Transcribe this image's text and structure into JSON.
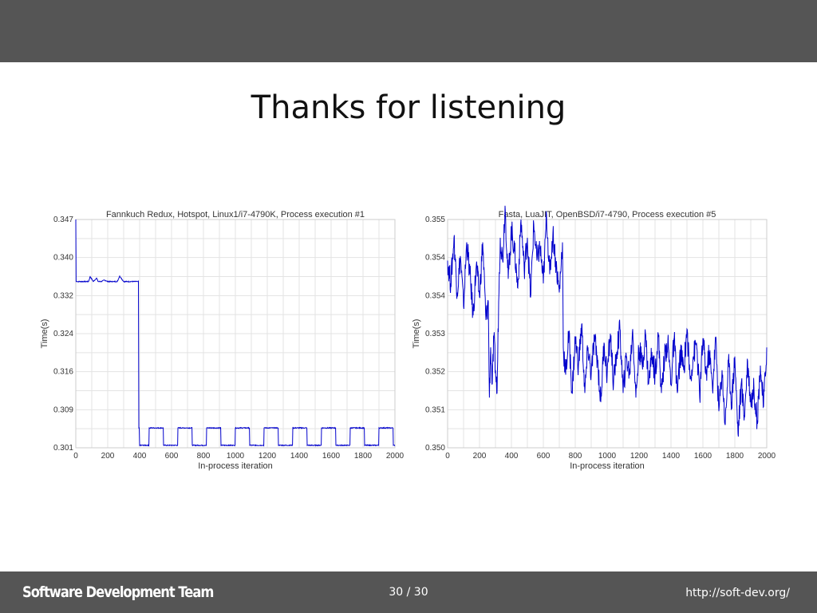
{
  "slide": {
    "title": "Thanks for listening"
  },
  "footer": {
    "team": "Software Development Team",
    "page": "30 / 30",
    "url": "http://soft-dev.org/"
  },
  "colors": {
    "bar": "#555555",
    "series": "#0000cc"
  },
  "chart_data": [
    {
      "type": "line",
      "title": "Fannkuch Redux, Hotspot, Linux1/i7-4790K, Process execution #1",
      "xlabel": "In-process iteration",
      "ylabel": "Time(s)",
      "xlim": [
        0,
        2000
      ],
      "ylim": [
        0.301,
        0.347
      ],
      "xticks": [
        "0",
        "200",
        "400",
        "600",
        "800",
        "1000",
        "1200",
        "1400",
        "1600",
        "1800",
        "2000"
      ],
      "yticks": [
        "0.301",
        "0.309",
        "0.316",
        "0.324",
        "0.332",
        "0.340",
        "0.347"
      ],
      "grid": true,
      "series": [
        {
          "x": [
            0,
            1,
            2,
            5,
            80,
            90,
            110,
            130,
            140,
            160,
            180,
            200,
            260,
            275,
            300,
            385,
            390,
            395,
            400,
            450,
            460,
            540,
            550,
            630,
            640,
            720,
            730,
            810,
            820,
            900,
            910,
            990,
            1000,
            1080,
            1090,
            1170,
            1180,
            1260,
            1270,
            1350,
            1360,
            1440,
            1450,
            1530,
            1540,
            1620,
            1630,
            1710,
            1720,
            1800,
            1810,
            1890,
            1900,
            1980,
            1990,
            2000
          ],
          "y": [
            0.347,
            0.341,
            0.3345,
            0.3345,
            0.3345,
            0.3355,
            0.3345,
            0.3352,
            0.3345,
            0.3345,
            0.3348,
            0.3345,
            0.3345,
            0.3356,
            0.3345,
            0.3345,
            0.3345,
            0.305,
            0.3015,
            0.3015,
            0.305,
            0.305,
            0.3015,
            0.3015,
            0.305,
            0.305,
            0.3015,
            0.3015,
            0.305,
            0.305,
            0.3015,
            0.3015,
            0.305,
            0.305,
            0.3015,
            0.3015,
            0.305,
            0.305,
            0.3015,
            0.3015,
            0.305,
            0.305,
            0.3015,
            0.3015,
            0.305,
            0.305,
            0.3015,
            0.3015,
            0.305,
            0.305,
            0.3015,
            0.3015,
            0.305,
            0.305,
            0.3015,
            0.3015
          ]
        }
      ]
    },
    {
      "type": "line",
      "title": "Fasta, LuaJIT, OpenBSD/i7-4790, Process execution #5",
      "xlabel": "In-process iteration",
      "ylabel": "Time(s)",
      "xlim": [
        0,
        2000
      ],
      "ylim": [
        0.35,
        0.355
      ],
      "xticks": [
        "0",
        "200",
        "400",
        "600",
        "800",
        "1000",
        "1200",
        "1400",
        "1600",
        "1800",
        "2000"
      ],
      "yticks": [
        "0.350",
        "0.351",
        "0.352",
        "0.353",
        "0.354",
        "0.354",
        "0.355"
      ],
      "grid": true,
      "series": [
        {
          "x": [
            0,
            20,
            40,
            60,
            80,
            100,
            120,
            140,
            160,
            180,
            200,
            220,
            240,
            255,
            262,
            270,
            280,
            290,
            300,
            310,
            320,
            330,
            345,
            360,
            380,
            400,
            420,
            440,
            460,
            480,
            500,
            520,
            540,
            560,
            580,
            600,
            620,
            640,
            660,
            680,
            700,
            720,
            725,
            740,
            760,
            780,
            800,
            820,
            840,
            860,
            880,
            900,
            920,
            940,
            960,
            980,
            1000,
            1020,
            1040,
            1060,
            1080,
            1100,
            1120,
            1140,
            1160,
            1180,
            1200,
            1220,
            1240,
            1260,
            1280,
            1300,
            1320,
            1340,
            1360,
            1380,
            1400,
            1420,
            1440,
            1460,
            1480,
            1500,
            1520,
            1540,
            1560,
            1580,
            1600,
            1620,
            1640,
            1660,
            1680,
            1700,
            1720,
            1740,
            1760,
            1780,
            1800,
            1820,
            1840,
            1860,
            1880,
            1900,
            1920,
            1940,
            1960,
            1980,
            2000
          ],
          "y": [
            0.3541,
            0.3536,
            0.3546,
            0.3534,
            0.3542,
            0.3531,
            0.3545,
            0.3538,
            0.3529,
            0.354,
            0.3533,
            0.3545,
            0.3528,
            0.3532,
            0.3511,
            0.3522,
            0.3514,
            0.3524,
            0.3517,
            0.3512,
            0.3532,
            0.3546,
            0.3541,
            0.3553,
            0.3537,
            0.3548,
            0.3543,
            0.3535,
            0.355,
            0.3539,
            0.3546,
            0.3533,
            0.3549,
            0.3541,
            0.3544,
            0.3536,
            0.3551,
            0.3538,
            0.3547,
            0.354,
            0.3534,
            0.3545,
            0.3522,
            0.3516,
            0.3525,
            0.3512,
            0.3524,
            0.3518,
            0.3527,
            0.3512,
            0.3522,
            0.3516,
            0.3524,
            0.3519,
            0.351,
            0.3523,
            0.3516,
            0.3525,
            0.3514,
            0.3521,
            0.3526,
            0.3512,
            0.352,
            0.3516,
            0.3526,
            0.3511,
            0.3522,
            0.3518,
            0.3525,
            0.3514,
            0.3521,
            0.3516,
            0.3525,
            0.3512,
            0.352,
            0.3523,
            0.3514,
            0.3524,
            0.3512,
            0.3521,
            0.3517,
            0.3526,
            0.3515,
            0.352,
            0.3523,
            0.3511,
            0.3524,
            0.3516,
            0.3521,
            0.3513,
            0.3524,
            0.3508,
            0.3517,
            0.3505,
            0.3519,
            0.351,
            0.352,
            0.3503,
            0.3514,
            0.3507,
            0.3519,
            0.351,
            0.3513,
            0.3506,
            0.3518,
            0.3509,
            0.3522
          ]
        }
      ]
    }
  ]
}
